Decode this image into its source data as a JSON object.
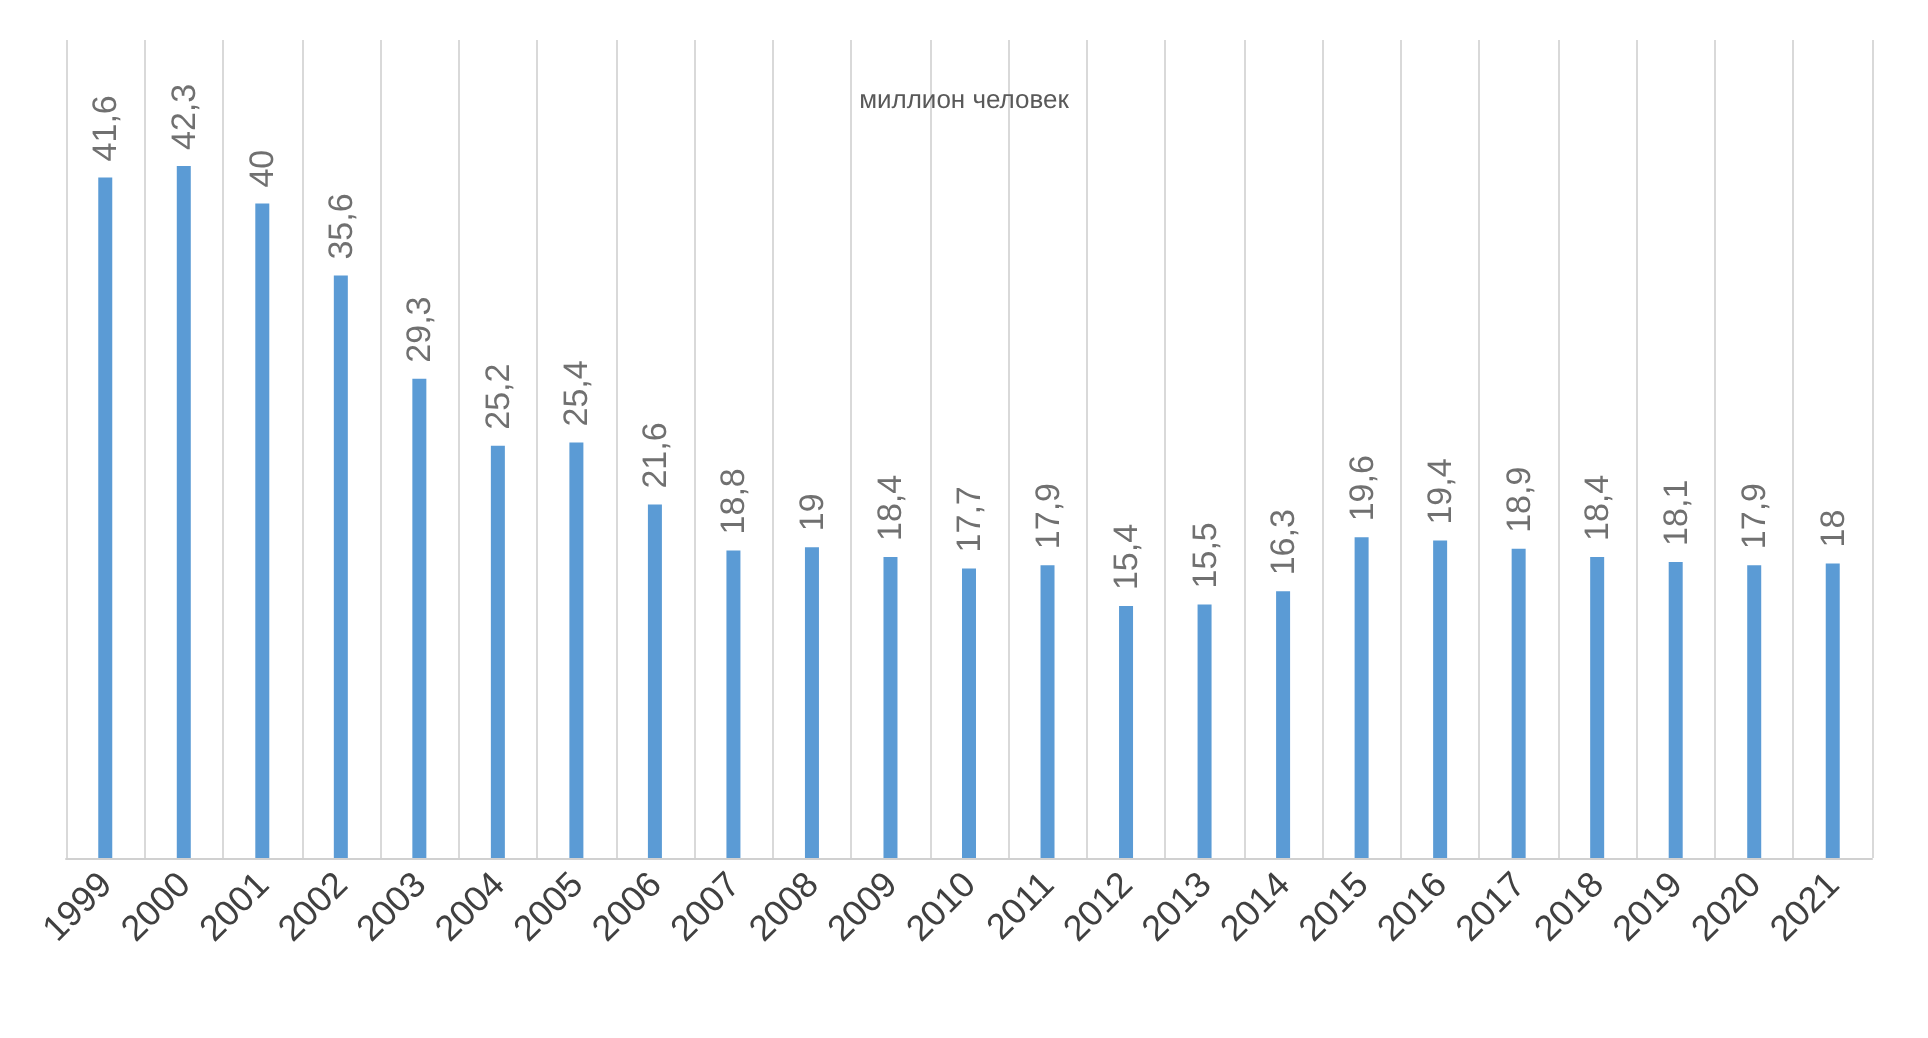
{
  "chart_data": {
    "type": "bar",
    "title": "миллион человек",
    "categories": [
      "1999",
      "2000",
      "2001",
      "2002",
      "2003",
      "2004",
      "2005",
      "2006",
      "2007",
      "2008",
      "2009",
      "2010",
      "2011",
      "2012",
      "2013",
      "2014",
      "2015",
      "2016",
      "2017",
      "2018",
      "2019",
      "2020",
      "2021"
    ],
    "values": [
      41.6,
      42.3,
      40,
      35.6,
      29.3,
      25.2,
      25.4,
      21.6,
      18.8,
      19,
      18.4,
      17.7,
      17.9,
      15.4,
      15.5,
      16.3,
      19.6,
      19.4,
      18.9,
      18.4,
      18.1,
      17.9,
      18
    ],
    "value_labels": [
      "41,6",
      "42,3",
      "40",
      "35,6",
      "29,3",
      "25,2",
      "25,4",
      "21,6",
      "18,8",
      "19",
      "18,4",
      "17,7",
      "17,9",
      "15,4",
      "15,5",
      "16,3",
      "19,6",
      "19,4",
      "18,9",
      "18,4",
      "18,1",
      "17,9",
      "18"
    ],
    "color": "#5b9bd5",
    "grid": "x",
    "tick_labels": "x"
  }
}
